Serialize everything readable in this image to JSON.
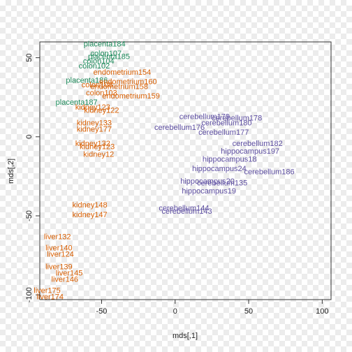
{
  "chart_data": {
    "type": "scatter",
    "title": "",
    "xlabel": "mds[,1]",
    "ylabel": "mds[,2]",
    "xlim": [
      -92,
      106
    ],
    "ylim": [
      -103,
      60
    ],
    "x_ticks": [
      -50,
      0,
      50,
      100
    ],
    "x_tick_labels": [
      "-50",
      "0",
      "50",
      "100"
    ],
    "y_ticks": [
      -100,
      -50,
      0,
      50
    ],
    "y_tick_labels": [
      "-100",
      "-50",
      "0",
      "50"
    ],
    "grid": false,
    "legend": "none",
    "points": [
      {
        "label": "placenta184",
        "x": -48,
        "y": 59,
        "color": "#1b8a5a"
      },
      {
        "label": "colon107",
        "x": -47,
        "y": 53,
        "color": "#1b8a5a"
      },
      {
        "label": "placenta185",
        "x": -45,
        "y": 51,
        "color": "#1b8a5a"
      },
      {
        "label": "colon104",
        "x": -52,
        "y": 48,
        "color": "#1b8a5a"
      },
      {
        "label": "colon102",
        "x": -55,
        "y": 45,
        "color": "#1b8a5a"
      },
      {
        "label": "endometrium154",
        "x": -36,
        "y": 41,
        "color": "#d95f02"
      },
      {
        "label": "placenta186",
        "x": -60,
        "y": 36,
        "color": "#1b8a5a"
      },
      {
        "label": "endometrium160",
        "x": -32,
        "y": 35,
        "color": "#d95f02"
      },
      {
        "label": "colon108",
        "x": -53,
        "y": 33,
        "color": "#d95f02"
      },
      {
        "label": "endometrium158",
        "x": -38,
        "y": 32,
        "color": "#d95f02"
      },
      {
        "label": "colon103",
        "x": -50,
        "y": 28,
        "color": "#d95f02"
      },
      {
        "label": "endometrium159",
        "x": -30,
        "y": 26,
        "color": "#d95f02"
      },
      {
        "label": "placenta187",
        "x": -67,
        "y": 22,
        "color": "#1b8a5a"
      },
      {
        "label": "kidney122",
        "x": -50,
        "y": 17,
        "color": "#d95f02"
      },
      {
        "label": "kidney123",
        "x": -56,
        "y": 19,
        "color": "#d95f02"
      },
      {
        "label": "kidney133",
        "x": -55,
        "y": 9,
        "color": "#d95f02"
      },
      {
        "label": "kidney177",
        "x": -55,
        "y": 5,
        "color": "#d95f02"
      },
      {
        "label": "kidney132",
        "x": -56,
        "y": -4,
        "color": "#d95f02"
      },
      {
        "label": "kidney123",
        "x": -53,
        "y": -6,
        "color": "#d95f02"
      },
      {
        "label": "kidney12",
        "x": -52,
        "y": -11,
        "color": "#d95f02"
      },
      {
        "label": "cerebellum179",
        "x": 20,
        "y": 13,
        "color": "#5e4fa2"
      },
      {
        "label": "cerebellum178",
        "x": 42,
        "y": 12,
        "color": "#5e4fa2"
      },
      {
        "label": "cerebellum180",
        "x": 35,
        "y": 9,
        "color": "#5e4fa2"
      },
      {
        "label": "cerebellum176",
        "x": 3,
        "y": 6,
        "color": "#5e4fa2"
      },
      {
        "label": "cerebellum177",
        "x": 33,
        "y": 3,
        "color": "#5e4fa2"
      },
      {
        "label": "cerebellum182",
        "x": 56,
        "y": -4,
        "color": "#5e4fa2"
      },
      {
        "label": "hippocampus197",
        "x": 51,
        "y": -9,
        "color": "#5e4fa2"
      },
      {
        "label": "hippocampus18",
        "x": 37,
        "y": -14,
        "color": "#5e4fa2"
      },
      {
        "label": "hippocampus24",
        "x": 30,
        "y": -20,
        "color": "#5e4fa2"
      },
      {
        "label": "cerebellum186",
        "x": 64,
        "y": -22,
        "color": "#5e4fa2"
      },
      {
        "label": "hippocampus20",
        "x": 22,
        "y": -28,
        "color": "#5e4fa2"
      },
      {
        "label": "cerebellum135",
        "x": 32,
        "y": -29,
        "color": "#5e4fa2"
      },
      {
        "label": "hippocampus19",
        "x": 23,
        "y": -34,
        "color": "#5e4fa2"
      },
      {
        "label": "cerebellum144",
        "x": 6,
        "y": -45,
        "color": "#5e4fa2"
      },
      {
        "label": "cerebellum143",
        "x": 8,
        "y": -47,
        "color": "#5e4fa2"
      },
      {
        "label": "kidney148",
        "x": -58,
        "y": -43,
        "color": "#d95f02"
      },
      {
        "label": "kidney147",
        "x": -58,
        "y": -49,
        "color": "#d95f02"
      },
      {
        "label": "liver132",
        "x": -80,
        "y": -63,
        "color": "#d95f02"
      },
      {
        "label": "liver140",
        "x": -79,
        "y": -70,
        "color": "#d95f02"
      },
      {
        "label": "liver124",
        "x": -78,
        "y": -74,
        "color": "#d95f02"
      },
      {
        "label": "liver139",
        "x": -79,
        "y": -82,
        "color": "#d95f02"
      },
      {
        "label": "liver145",
        "x": -72,
        "y": -86,
        "color": "#d95f02"
      },
      {
        "label": "liver146",
        "x": -75,
        "y": -90,
        "color": "#d95f02"
      },
      {
        "label": "liver175",
        "x": -87,
        "y": -97,
        "color": "#d95f02"
      },
      {
        "label": "liver174",
        "x": -85,
        "y": -101,
        "color": "#d95f02"
      }
    ]
  }
}
